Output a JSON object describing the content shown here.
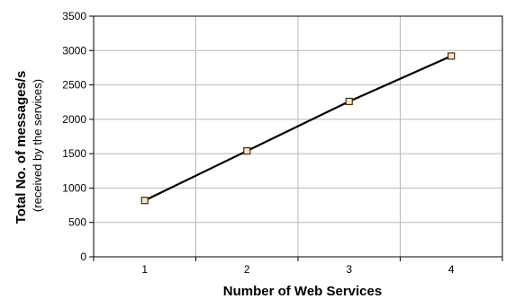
{
  "chart_data": {
    "type": "line",
    "x": [
      1,
      2,
      3,
      4
    ],
    "x_tick_labels": [
      "1",
      "2",
      "3",
      "4"
    ],
    "y_tick_labels": [
      "0",
      "500",
      "1000",
      "1500",
      "2000",
      "2500",
      "3000",
      "3500"
    ],
    "series": [
      {
        "values": [
          820,
          1540,
          2260,
          2920
        ]
      }
    ],
    "xlabel": "Number of Web Services",
    "ylabel": "Total No. of messages/s",
    "ylabel_sub": "(received by the services)",
    "ylim": [
      0,
      3500
    ],
    "xlim": [
      0.5,
      4.5
    ],
    "grid": true,
    "legend": "none",
    "colors": {
      "line": "#000000",
      "marker_fill": "#f7e7c8",
      "marker_stroke": "#4a2a10",
      "grid": "#b8b8b8"
    }
  }
}
